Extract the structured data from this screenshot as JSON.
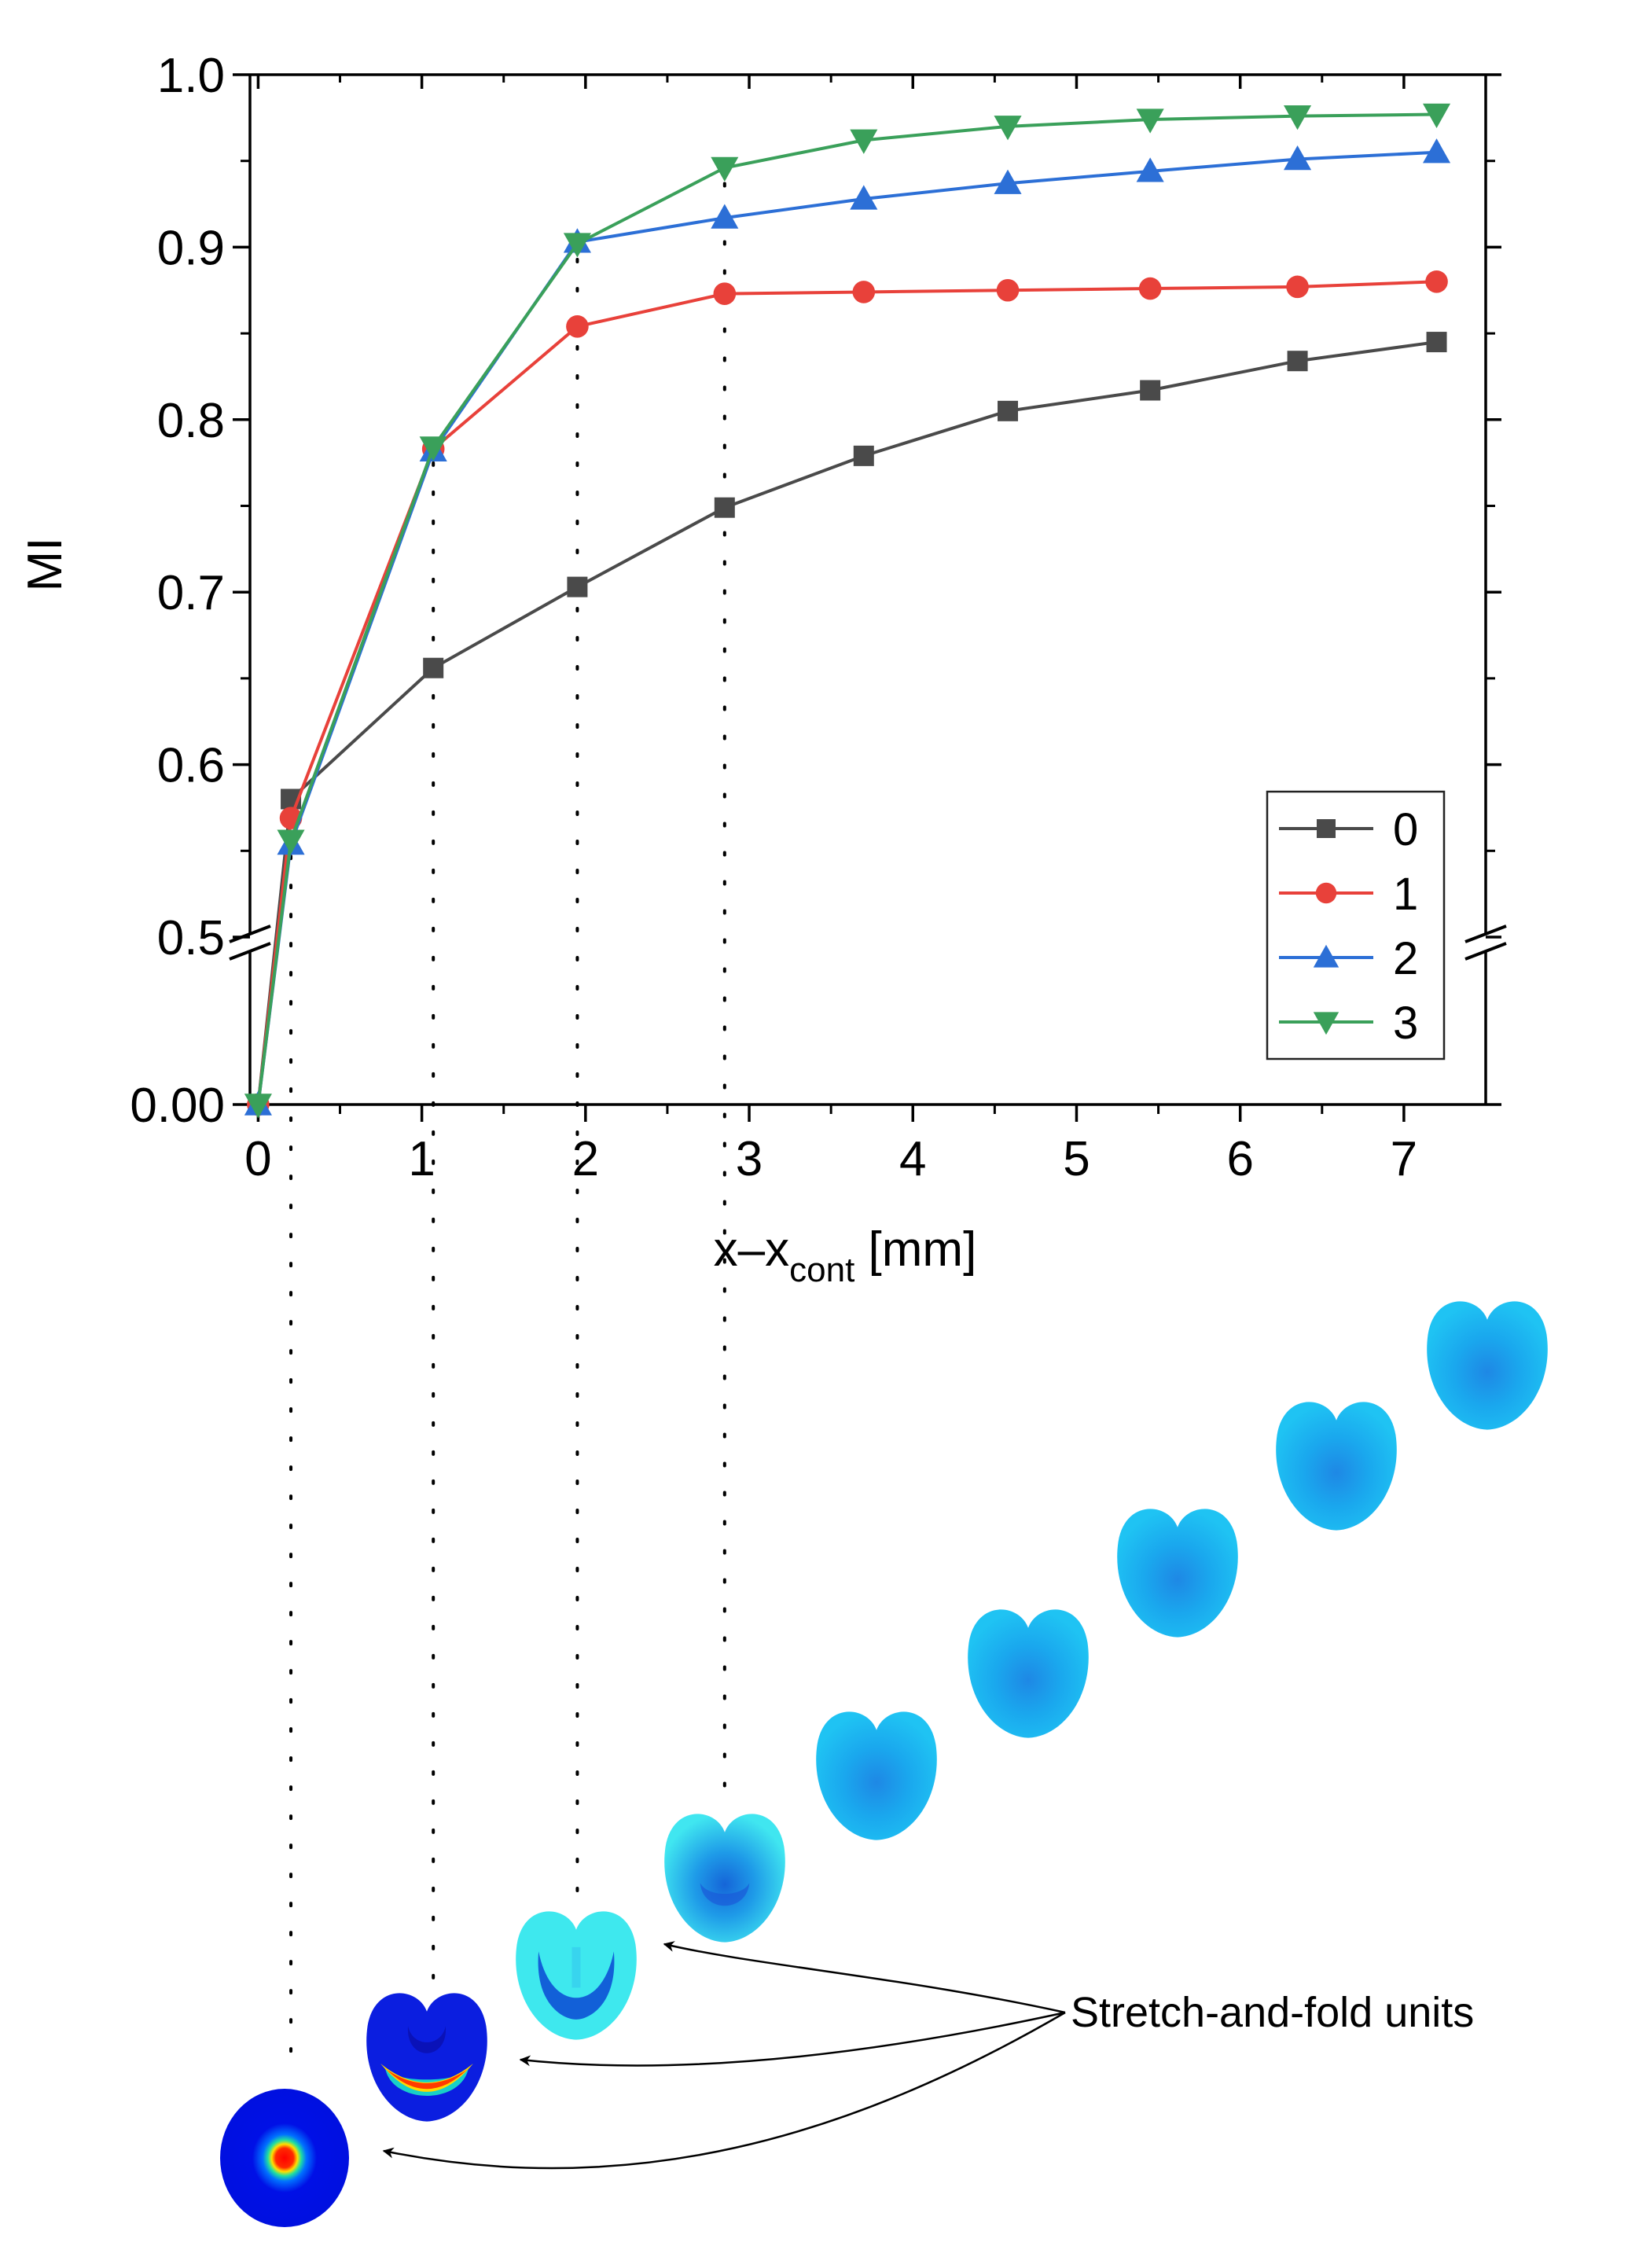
{
  "chart_data": {
    "type": "line",
    "xlabel": {
      "base": "x–x",
      "subscript": "cont",
      "unit": " [mm]"
    },
    "ylabel": "MI",
    "xlim": [
      -0.05,
      7.5
    ],
    "x_ticks": [
      "0",
      "1",
      "2",
      "3",
      "4",
      "5",
      "6",
      "7"
    ],
    "y_ticks_upper": [
      "0.5",
      "0.6",
      "0.7",
      "0.8",
      "0.9",
      "1.0"
    ],
    "y_ticks_lower": [
      "0.00"
    ],
    "ylim_upper": [
      0.5,
      1.0
    ],
    "ylim_lower": [
      0.0,
      0.05
    ],
    "axis_break": "y between 0.05 and 0.5",
    "x": [
      0,
      0.2,
      1.07,
      1.95,
      2.85,
      3.7,
      4.58,
      5.45,
      6.35,
      7.2
    ],
    "series": [
      {
        "name": "0",
        "marker": "square",
        "color": "#4a4a4a",
        "values": [
          0.0,
          0.58,
          0.656,
          0.703,
          0.749,
          0.779,
          0.805,
          0.817,
          0.834,
          0.845
        ]
      },
      {
        "name": "1",
        "marker": "circle",
        "color": "#e8413a",
        "values": [
          0.0,
          0.569,
          0.783,
          0.854,
          0.873,
          0.874,
          0.875,
          0.876,
          0.877,
          0.88
        ]
      },
      {
        "name": "2",
        "marker": "triangle-up",
        "color": "#2c6fd6",
        "values": [
          0.0,
          0.554,
          0.782,
          0.903,
          0.917,
          0.928,
          0.937,
          0.944,
          0.951,
          0.955
        ]
      },
      {
        "name": "3",
        "marker": "triangle-down",
        "color": "#3aa05a",
        "values": [
          0.0,
          0.556,
          0.784,
          0.902,
          0.946,
          0.962,
          0.97,
          0.974,
          0.976,
          0.977
        ]
      }
    ],
    "legend_position": "lower-right",
    "guide_lines_x": [
      0.2,
      1.07,
      1.95,
      2.85
    ],
    "annotation": "Stretch-and-fold units"
  }
}
